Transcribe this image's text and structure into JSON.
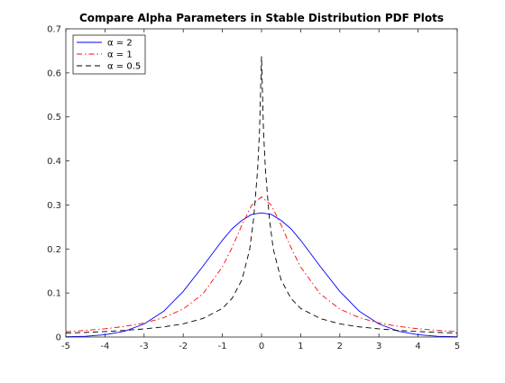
{
  "chart_data": {
    "type": "line",
    "title": "Compare Alpha Parameters in Stable Distribution PDF Plots",
    "xlabel": "",
    "ylabel": "",
    "xlim": [
      -5,
      5
    ],
    "ylim": [
      0,
      0.7
    ],
    "xticks": [
      -5,
      -4,
      -3,
      -2,
      -1,
      0,
      1,
      2,
      3,
      4,
      5
    ],
    "yticks": [
      0,
      0.1,
      0.2,
      0.3,
      0.4,
      0.5,
      0.6,
      0.7
    ],
    "xtick_labels": [
      "-5",
      "-4",
      "-3",
      "-2",
      "-1",
      "0",
      "1",
      "2",
      "3",
      "4",
      "5"
    ],
    "ytick_labels": [
      "0",
      "0.1",
      "0.2",
      "0.3",
      "0.4",
      "0.5",
      "0.6",
      "0.7"
    ],
    "grid": false,
    "legend_position": "top-left",
    "series": [
      {
        "name": "α = 2",
        "color": "#0000ff",
        "dash": "solid",
        "x": [
          -5,
          -4.5,
          -4,
          -3.5,
          -3,
          -2.5,
          -2,
          -1.5,
          -1,
          -0.75,
          -0.5,
          -0.25,
          0,
          0.25,
          0.5,
          0.75,
          1,
          1.5,
          2,
          2.5,
          3,
          3.5,
          4,
          4.5,
          5
        ],
        "y": [
          0.0005,
          0.0017,
          0.0052,
          0.0132,
          0.0297,
          0.0585,
          0.1038,
          0.1604,
          0.2197,
          0.2461,
          0.265,
          0.2785,
          0.2821,
          0.2785,
          0.265,
          0.2461,
          0.2197,
          0.1604,
          0.1038,
          0.0585,
          0.0297,
          0.0132,
          0.0052,
          0.0017,
          0.0005
        ]
      },
      {
        "name": "α = 1",
        "color": "#ff0000",
        "dash": "dashdot",
        "x": [
          -5,
          -4.5,
          -4,
          -3.5,
          -3,
          -2.5,
          -2,
          -1.5,
          -1,
          -0.75,
          -0.5,
          -0.25,
          0,
          0.25,
          0.5,
          0.75,
          1,
          1.5,
          2,
          2.5,
          3,
          3.5,
          4,
          4.5,
          5
        ],
        "y": [
          0.0122,
          0.015,
          0.0187,
          0.0241,
          0.0318,
          0.0439,
          0.0637,
          0.0979,
          0.1592,
          0.2037,
          0.2546,
          0.2996,
          0.3183,
          0.2996,
          0.2546,
          0.2037,
          0.1592,
          0.0979,
          0.0637,
          0.0439,
          0.0318,
          0.0241,
          0.0187,
          0.015,
          0.0122
        ]
      },
      {
        "name": "α = 0.5",
        "color": "#000000",
        "dash": "dashed",
        "x": [
          -5,
          -4.5,
          -4,
          -3.5,
          -3,
          -2.5,
          -2,
          -1.5,
          -1,
          -0.75,
          -0.5,
          -0.3,
          -0.2,
          -0.1,
          -0.05,
          0,
          0.05,
          0.1,
          0.2,
          0.3,
          0.5,
          0.75,
          1,
          1.5,
          2,
          2.5,
          3,
          3.5,
          4,
          4.5,
          5
        ],
        "y": [
          0.009,
          0.0105,
          0.0125,
          0.015,
          0.0185,
          0.023,
          0.03,
          0.042,
          0.065,
          0.088,
          0.13,
          0.2,
          0.27,
          0.38,
          0.47,
          0.637,
          0.47,
          0.38,
          0.27,
          0.2,
          0.13,
          0.088,
          0.065,
          0.042,
          0.03,
          0.023,
          0.0185,
          0.015,
          0.0125,
          0.0105,
          0.009
        ]
      }
    ]
  }
}
